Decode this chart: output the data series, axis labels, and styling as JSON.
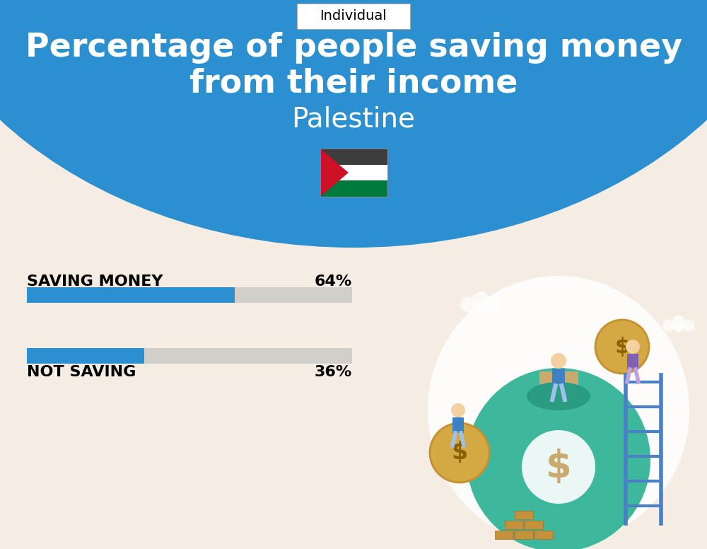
{
  "title_line1": "Percentage of people saving money",
  "title_line2": "from their income",
  "subtitle": "Palestine",
  "tab_label": "Individual",
  "bg_top_color": "#2B8FD0",
  "bg_bottom_color": "#F5EDE3",
  "bar_color": "#2B8FD0",
  "bar_bg_color": "#D0CFC9",
  "categories": [
    "SAVING MONEY",
    "NOT SAVING"
  ],
  "values": [
    64,
    36
  ],
  "title_color": "#FFFFFF",
  "subtitle_color": "#FFFFFF",
  "value_color": "#000000",
  "label_color": "#000000",
  "tab_color": "#FFFFFF",
  "tab_text_color": "#000000",
  "flag_colors": {
    "black": "#3D3D3D",
    "white": "#FFFFFF",
    "green": "#007A3D",
    "red": "#CE1126",
    "triangle": "#CE1126"
  },
  "figsize": [
    10.0,
    7.76
  ],
  "dpi": 100
}
